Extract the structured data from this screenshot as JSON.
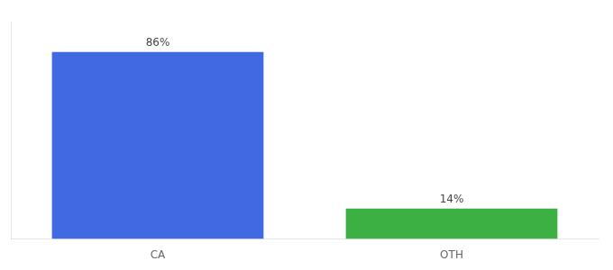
{
  "chart_data": {
    "type": "bar",
    "categories": [
      "CA",
      "OTH"
    ],
    "values": [
      86,
      14
    ],
    "value_labels": [
      "86%",
      "14%"
    ],
    "colors": [
      "#4169e1",
      "#3cb043"
    ],
    "ylim": [
      0,
      100
    ],
    "grid": false,
    "data_labels": true,
    "tick_labels": "x"
  }
}
